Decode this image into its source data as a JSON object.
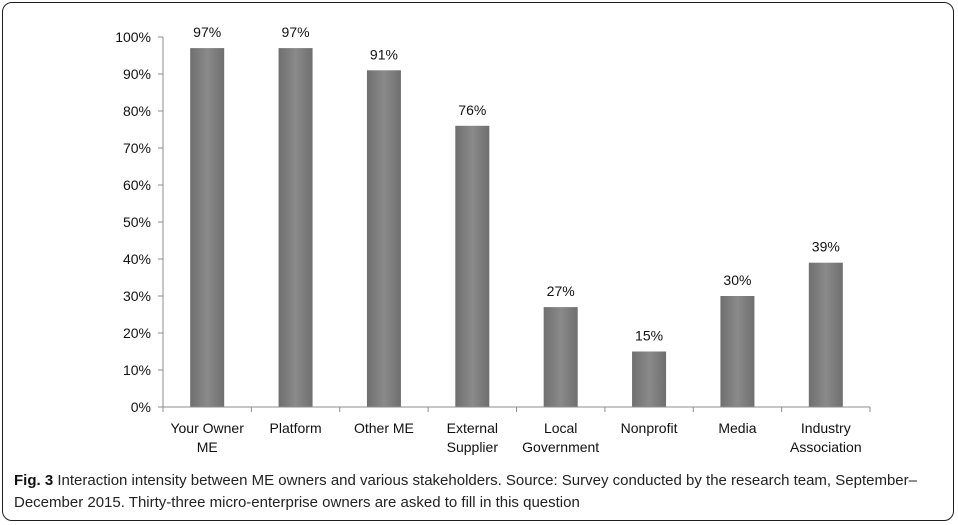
{
  "chart_data": {
    "type": "bar",
    "categories": [
      [
        "Your Owner",
        "ME"
      ],
      [
        "Platform"
      ],
      [
        "Other ME"
      ],
      [
        "External",
        "Supplier"
      ],
      [
        "Local",
        "Government"
      ],
      [
        "Nonprofit"
      ],
      [
        "Media"
      ],
      [
        "Industry",
        "Association"
      ]
    ],
    "values": [
      97,
      97,
      91,
      76,
      27,
      15,
      30,
      39
    ],
    "data_labels": [
      "97%",
      "97%",
      "91%",
      "76%",
      "27%",
      "15%",
      "30%",
      "39%"
    ],
    "y_ticks": [
      "0%",
      "10%",
      "20%",
      "30%",
      "40%",
      "50%",
      "60%",
      "70%",
      "80%",
      "90%",
      "100%"
    ],
    "ylim": [
      0,
      100
    ],
    "grid": false,
    "legend": "none",
    "bar_color": "#7f7f7f",
    "title": "",
    "xlabel": "",
    "ylabel": ""
  },
  "caption": {
    "label": "Fig. 3",
    "text": "Interaction intensity between ME owners and various stakeholders. Source: Survey conducted by the research team, September–December 2015. Thirty-three micro-enterprise owners are asked to fill in this question"
  }
}
